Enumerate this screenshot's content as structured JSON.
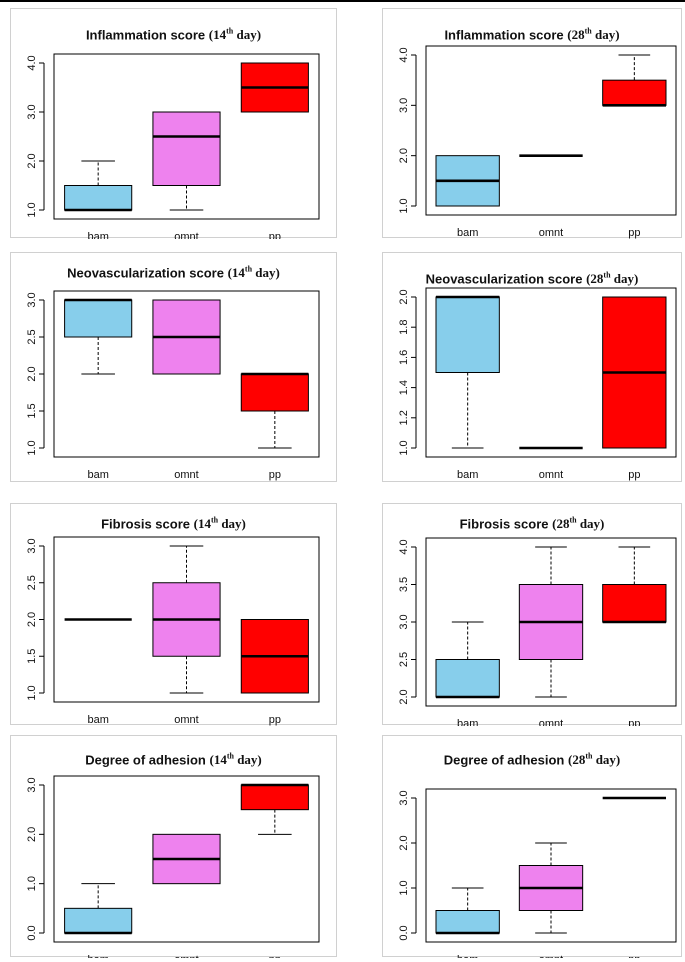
{
  "chart_data": [
    {
      "type": "box",
      "title_main": "Inflammation score",
      "title_open": "(",
      "title_num": "14",
      "title_sup": "th",
      "title_day": "day)",
      "categories": [
        "bam",
        "omnt",
        "pp"
      ],
      "ylim": [
        1,
        4
      ],
      "yticks": [
        "1.0",
        "2.0",
        "3.0",
        "4.0"
      ],
      "series": [
        {
          "category": "bam",
          "min": 1,
          "q1": 1,
          "median": 1,
          "q3": 1.5,
          "max": 2,
          "color": "#87ceeb"
        },
        {
          "category": "omnt",
          "min": 1,
          "q1": 1.5,
          "median": 2.5,
          "q3": 3,
          "max": 3,
          "color": "#ee82ee"
        },
        {
          "category": "pp",
          "min": 3,
          "q1": 3,
          "median": 3.5,
          "q3": 4,
          "max": 4,
          "color": "#ff0000"
        }
      ]
    },
    {
      "type": "box",
      "title_main": "Inflammation score",
      "title_open": "(",
      "title_num": "28",
      "title_sup": "th",
      "title_day": "day)",
      "categories": [
        "bam",
        "omnt",
        "pp"
      ],
      "ylim": [
        1,
        4
      ],
      "yticks": [
        "1.0",
        "2.0",
        "3.0",
        "4.0"
      ],
      "series": [
        {
          "category": "bam",
          "min": 1,
          "q1": 1,
          "median": 1.5,
          "q3": 2,
          "max": 2,
          "color": "#87ceeb"
        },
        {
          "category": "omnt",
          "min": 2,
          "q1": 2,
          "median": 2,
          "q3": 2,
          "max": 2,
          "color": "#ee82ee"
        },
        {
          "category": "pp",
          "min": 3,
          "q1": 3,
          "median": 3,
          "q3": 3.5,
          "max": 4,
          "color": "#ff0000"
        }
      ]
    },
    {
      "type": "box",
      "title_main": "Neovascularization score",
      "title_open": "(",
      "title_num": "14",
      "title_sup": "th",
      "title_day": "day)",
      "categories": [
        "bam",
        "omnt",
        "pp"
      ],
      "ylim": [
        1,
        3
      ],
      "yticks": [
        "1.0",
        "1.5",
        "2.0",
        "2.5",
        "3.0"
      ],
      "series": [
        {
          "category": "bam",
          "min": 2,
          "q1": 2.5,
          "median": 3,
          "q3": 3,
          "max": 3,
          "color": "#87ceeb"
        },
        {
          "category": "omnt",
          "min": 2,
          "q1": 2,
          "median": 2.5,
          "q3": 3,
          "max": 3,
          "color": "#ee82ee"
        },
        {
          "category": "pp",
          "min": 1,
          "q1": 1.5,
          "median": 2,
          "q3": 2,
          "max": 2,
          "color": "#ff0000"
        }
      ]
    },
    {
      "type": "box",
      "title_main": "Neovascularization score",
      "title_open": "(",
      "title_num": "28",
      "title_sup": "th",
      "title_day": "day)",
      "categories": [
        "bam",
        "omnt",
        "pp"
      ],
      "ylim": [
        1,
        2
      ],
      "yticks": [
        "1.0",
        "1.2",
        "1.4",
        "1.6",
        "1.8",
        "2.0"
      ],
      "series": [
        {
          "category": "bam",
          "min": 1,
          "q1": 1.5,
          "median": 2,
          "q3": 2,
          "max": 2,
          "color": "#87ceeb"
        },
        {
          "category": "omnt",
          "min": 1,
          "q1": 1,
          "median": 1,
          "q3": 1,
          "max": 1,
          "color": "#ee82ee"
        },
        {
          "category": "pp",
          "min": 1,
          "q1": 1,
          "median": 1.5,
          "q3": 2,
          "max": 2,
          "color": "#ff0000"
        }
      ]
    },
    {
      "type": "box",
      "title_main": "Fibrosis score",
      "title_open": "(",
      "title_num": "14",
      "title_sup": "th",
      "title_day": "day)",
      "categories": [
        "bam",
        "omnt",
        "pp"
      ],
      "ylim": [
        1,
        3
      ],
      "yticks": [
        "1.0",
        "1.5",
        "2.0",
        "2.5",
        "3.0"
      ],
      "series": [
        {
          "category": "bam",
          "min": 2,
          "q1": 2,
          "median": 2,
          "q3": 2,
          "max": 2,
          "color": "#87ceeb"
        },
        {
          "category": "omnt",
          "min": 1,
          "q1": 1.5,
          "median": 2,
          "q3": 2.5,
          "max": 3,
          "color": "#ee82ee"
        },
        {
          "category": "pp",
          "min": 1,
          "q1": 1,
          "median": 1.5,
          "q3": 2,
          "max": 2,
          "color": "#ff0000"
        }
      ]
    },
    {
      "type": "box",
      "title_main": "Fibrosis score",
      "title_open": "(",
      "title_num": "28",
      "title_sup": "th",
      "title_day": "day)",
      "categories": [
        "bam",
        "omnt",
        "pp"
      ],
      "ylim": [
        2,
        4
      ],
      "yticks": [
        "2.0",
        "2.5",
        "3.0",
        "3.5",
        "4.0"
      ],
      "series": [
        {
          "category": "bam",
          "min": 2,
          "q1": 2,
          "median": 2,
          "q3": 2.5,
          "max": 3,
          "color": "#87ceeb"
        },
        {
          "category": "omnt",
          "min": 2,
          "q1": 2.5,
          "median": 3,
          "q3": 3.5,
          "max": 4,
          "color": "#ee82ee"
        },
        {
          "category": "pp",
          "min": 3,
          "q1": 3,
          "median": 3,
          "q3": 3.5,
          "max": 4,
          "color": "#ff0000"
        }
      ]
    },
    {
      "type": "box",
      "title_main": "Degree of adhesion",
      "title_open": "(",
      "title_num": "14",
      "title_sup": "th",
      "title_day": "day)",
      "categories": [
        "bam",
        "omnt",
        "pp"
      ],
      "ylim": [
        0,
        3
      ],
      "yticks": [
        "0.0",
        "1.0",
        "2.0",
        "3.0"
      ],
      "series": [
        {
          "category": "bam",
          "min": 0,
          "q1": 0,
          "median": 0,
          "q3": 0.5,
          "max": 1,
          "color": "#87ceeb"
        },
        {
          "category": "omnt",
          "min": 1,
          "q1": 1,
          "median": 1.5,
          "q3": 2,
          "max": 2,
          "color": "#ee82ee"
        },
        {
          "category": "pp",
          "min": 2,
          "q1": 2.5,
          "median": 3,
          "q3": 3,
          "max": 3,
          "color": "#ff0000"
        }
      ]
    },
    {
      "type": "box",
      "title_main": "Degree of adhesion",
      "title_open": "(",
      "title_num": "28",
      "title_sup": "th",
      "title_day": "day)",
      "categories": [
        "bam",
        "omnt",
        "pp"
      ],
      "ylim": [
        0,
        3
      ],
      "yticks": [
        "0.0",
        "1.0",
        "2.0",
        "3.0"
      ],
      "series": [
        {
          "category": "bam",
          "min": 0,
          "q1": 0,
          "median": 0,
          "q3": 0.5,
          "max": 1,
          "color": "#87ceeb"
        },
        {
          "category": "omnt",
          "min": 0,
          "q1": 0.5,
          "median": 1,
          "q3": 1.5,
          "max": 2,
          "color": "#ee82ee"
        },
        {
          "category": "pp",
          "min": 3,
          "q1": 3,
          "median": 3,
          "q3": 3,
          "max": 3,
          "color": "#ff0000"
        }
      ]
    }
  ]
}
